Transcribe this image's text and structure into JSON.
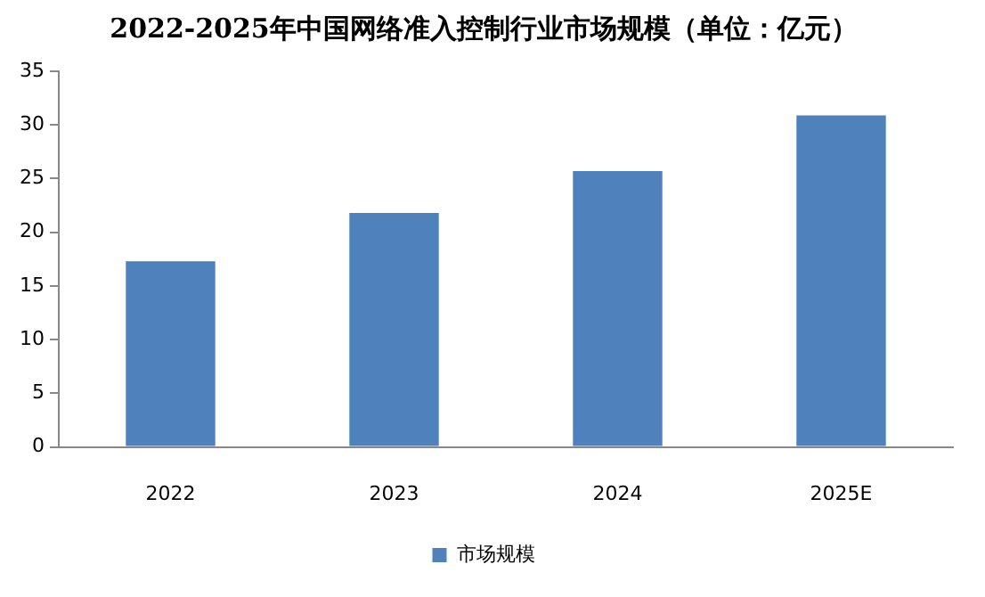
{
  "chart_data": {
    "type": "bar",
    "title": "2022-2025年中国网络准入控制行业市场规模（单位：亿元）",
    "categories": [
      "2022",
      "2023",
      "2024",
      "2025E"
    ],
    "series": [
      {
        "name": "市场规模",
        "color": "#4f81bd",
        "values": [
          17.3,
          21.8,
          25.7,
          30.9
        ]
      }
    ],
    "ylim": [
      0,
      35
    ],
    "yticks": [
      0,
      5,
      10,
      15,
      20,
      25,
      30,
      35
    ],
    "grid": false,
    "legend": "bottom"
  }
}
